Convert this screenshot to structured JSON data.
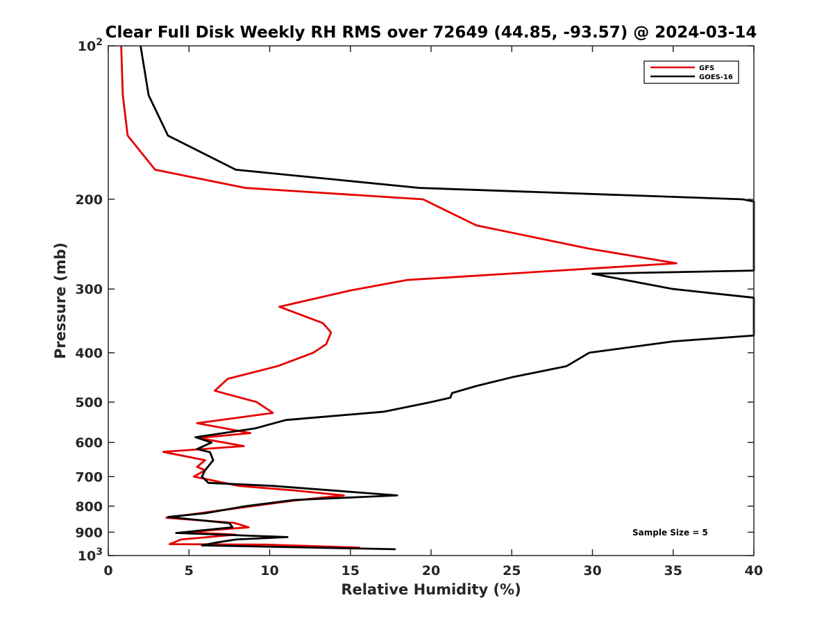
{
  "chart_data": {
    "type": "line",
    "title": "Clear Full Disk Weekly RH RMS over 72649 (44.85, -93.57) @ 2024-03-14",
    "xlabel": "Relative Humidity (%)",
    "ylabel": "Pressure (mb)",
    "xlim": [
      0,
      40
    ],
    "ylim": [
      100,
      1000
    ],
    "y_scale": "log",
    "y_reversed": true,
    "grid": false,
    "legend_position": "top-right",
    "x_ticks": [
      "0",
      "5",
      "10",
      "15",
      "20",
      "25",
      "30",
      "35",
      "40"
    ],
    "x_tick_values": [
      0,
      5,
      10,
      15,
      20,
      25,
      30,
      35,
      40
    ],
    "y_ticks": [
      {
        "value": 100,
        "base": "10",
        "exp": "2"
      },
      {
        "value": 200,
        "base": "200",
        "exp": ""
      },
      {
        "value": 300,
        "base": "300",
        "exp": ""
      },
      {
        "value": 400,
        "base": "400",
        "exp": ""
      },
      {
        "value": 500,
        "base": "500",
        "exp": ""
      },
      {
        "value": 600,
        "base": "600",
        "exp": ""
      },
      {
        "value": 700,
        "base": "700",
        "exp": ""
      },
      {
        "value": 800,
        "base": "800",
        "exp": ""
      },
      {
        "value": 900,
        "base": "900",
        "exp": ""
      },
      {
        "value": 1000,
        "base": "10",
        "exp": "3"
      }
    ],
    "annotation": "Sample Size = 5",
    "series": [
      {
        "name": "GFS",
        "color": "#e60000",
        "points": [
          [
            0.8,
            100
          ],
          [
            0.9,
            125
          ],
          [
            1.2,
            150
          ],
          [
            2.9,
            175
          ],
          [
            8.5,
            190
          ],
          [
            19.5,
            200
          ],
          [
            22.8,
            225
          ],
          [
            29.8,
            250
          ],
          [
            35.2,
            267
          ],
          [
            18.5,
            288
          ],
          [
            15.0,
            302
          ],
          [
            10.6,
            325
          ],
          [
            13.3,
            350
          ],
          [
            13.8,
            365
          ],
          [
            13.5,
            385
          ],
          [
            12.7,
            400
          ],
          [
            10.5,
            425
          ],
          [
            7.4,
            450
          ],
          [
            6.6,
            475
          ],
          [
            9.2,
            500
          ],
          [
            10.2,
            525
          ],
          [
            5.5,
            550
          ],
          [
            8.8,
            575
          ],
          [
            5.6,
            588
          ],
          [
            8.4,
            610
          ],
          [
            3.4,
            626
          ],
          [
            6.0,
            650
          ],
          [
            5.5,
            670
          ],
          [
            6.0,
            680
          ],
          [
            5.3,
            700
          ],
          [
            8.1,
            730
          ],
          [
            11.5,
            745
          ],
          [
            14.6,
            762
          ],
          [
            11.5,
            780
          ],
          [
            7.0,
            815
          ],
          [
            3.6,
            843
          ],
          [
            7.8,
            863
          ],
          [
            8.7,
            880
          ],
          [
            4.8,
            900
          ],
          [
            7.9,
            910
          ],
          [
            4.5,
            930
          ],
          [
            3.8,
            950
          ],
          [
            9.8,
            952
          ],
          [
            15.6,
            965
          ]
        ]
      },
      {
        "name": "GOES-16",
        "color": "#000000",
        "points": [
          [
            2.0,
            100
          ],
          [
            2.5,
            125
          ],
          [
            3.7,
            150
          ],
          [
            7.9,
            175
          ],
          [
            19.3,
            190
          ],
          [
            39.3,
            200
          ],
          [
            40.0,
            202
          ],
          [
            40.0,
            276
          ],
          [
            30.0,
            280
          ],
          [
            35.0,
            300
          ],
          [
            40.0,
            312
          ],
          [
            40.0,
            370
          ],
          [
            35.0,
            380
          ],
          [
            29.8,
            400
          ],
          [
            28.4,
            425
          ],
          [
            25.0,
            447
          ],
          [
            22.8,
            465
          ],
          [
            21.3,
            480
          ],
          [
            21.2,
            490
          ],
          [
            20.0,
            500
          ],
          [
            17.1,
            522
          ],
          [
            11.0,
            542
          ],
          [
            9.1,
            563
          ],
          [
            5.4,
            586
          ],
          [
            6.4,
            600
          ],
          [
            5.5,
            618
          ],
          [
            6.3,
            627
          ],
          [
            6.5,
            650
          ],
          [
            6.0,
            680
          ],
          [
            5.8,
            700
          ],
          [
            6.2,
            720
          ],
          [
            10.2,
            730
          ],
          [
            17.9,
            762
          ],
          [
            11.5,
            778
          ],
          [
            8.5,
            800
          ],
          [
            6.0,
            826
          ],
          [
            3.7,
            840
          ],
          [
            7.5,
            864
          ],
          [
            7.7,
            880
          ],
          [
            4.2,
            903
          ],
          [
            11.1,
            920
          ],
          [
            7.9,
            930
          ],
          [
            6.7,
            943
          ],
          [
            5.8,
            955
          ],
          [
            17.8,
            972
          ]
        ]
      }
    ]
  }
}
